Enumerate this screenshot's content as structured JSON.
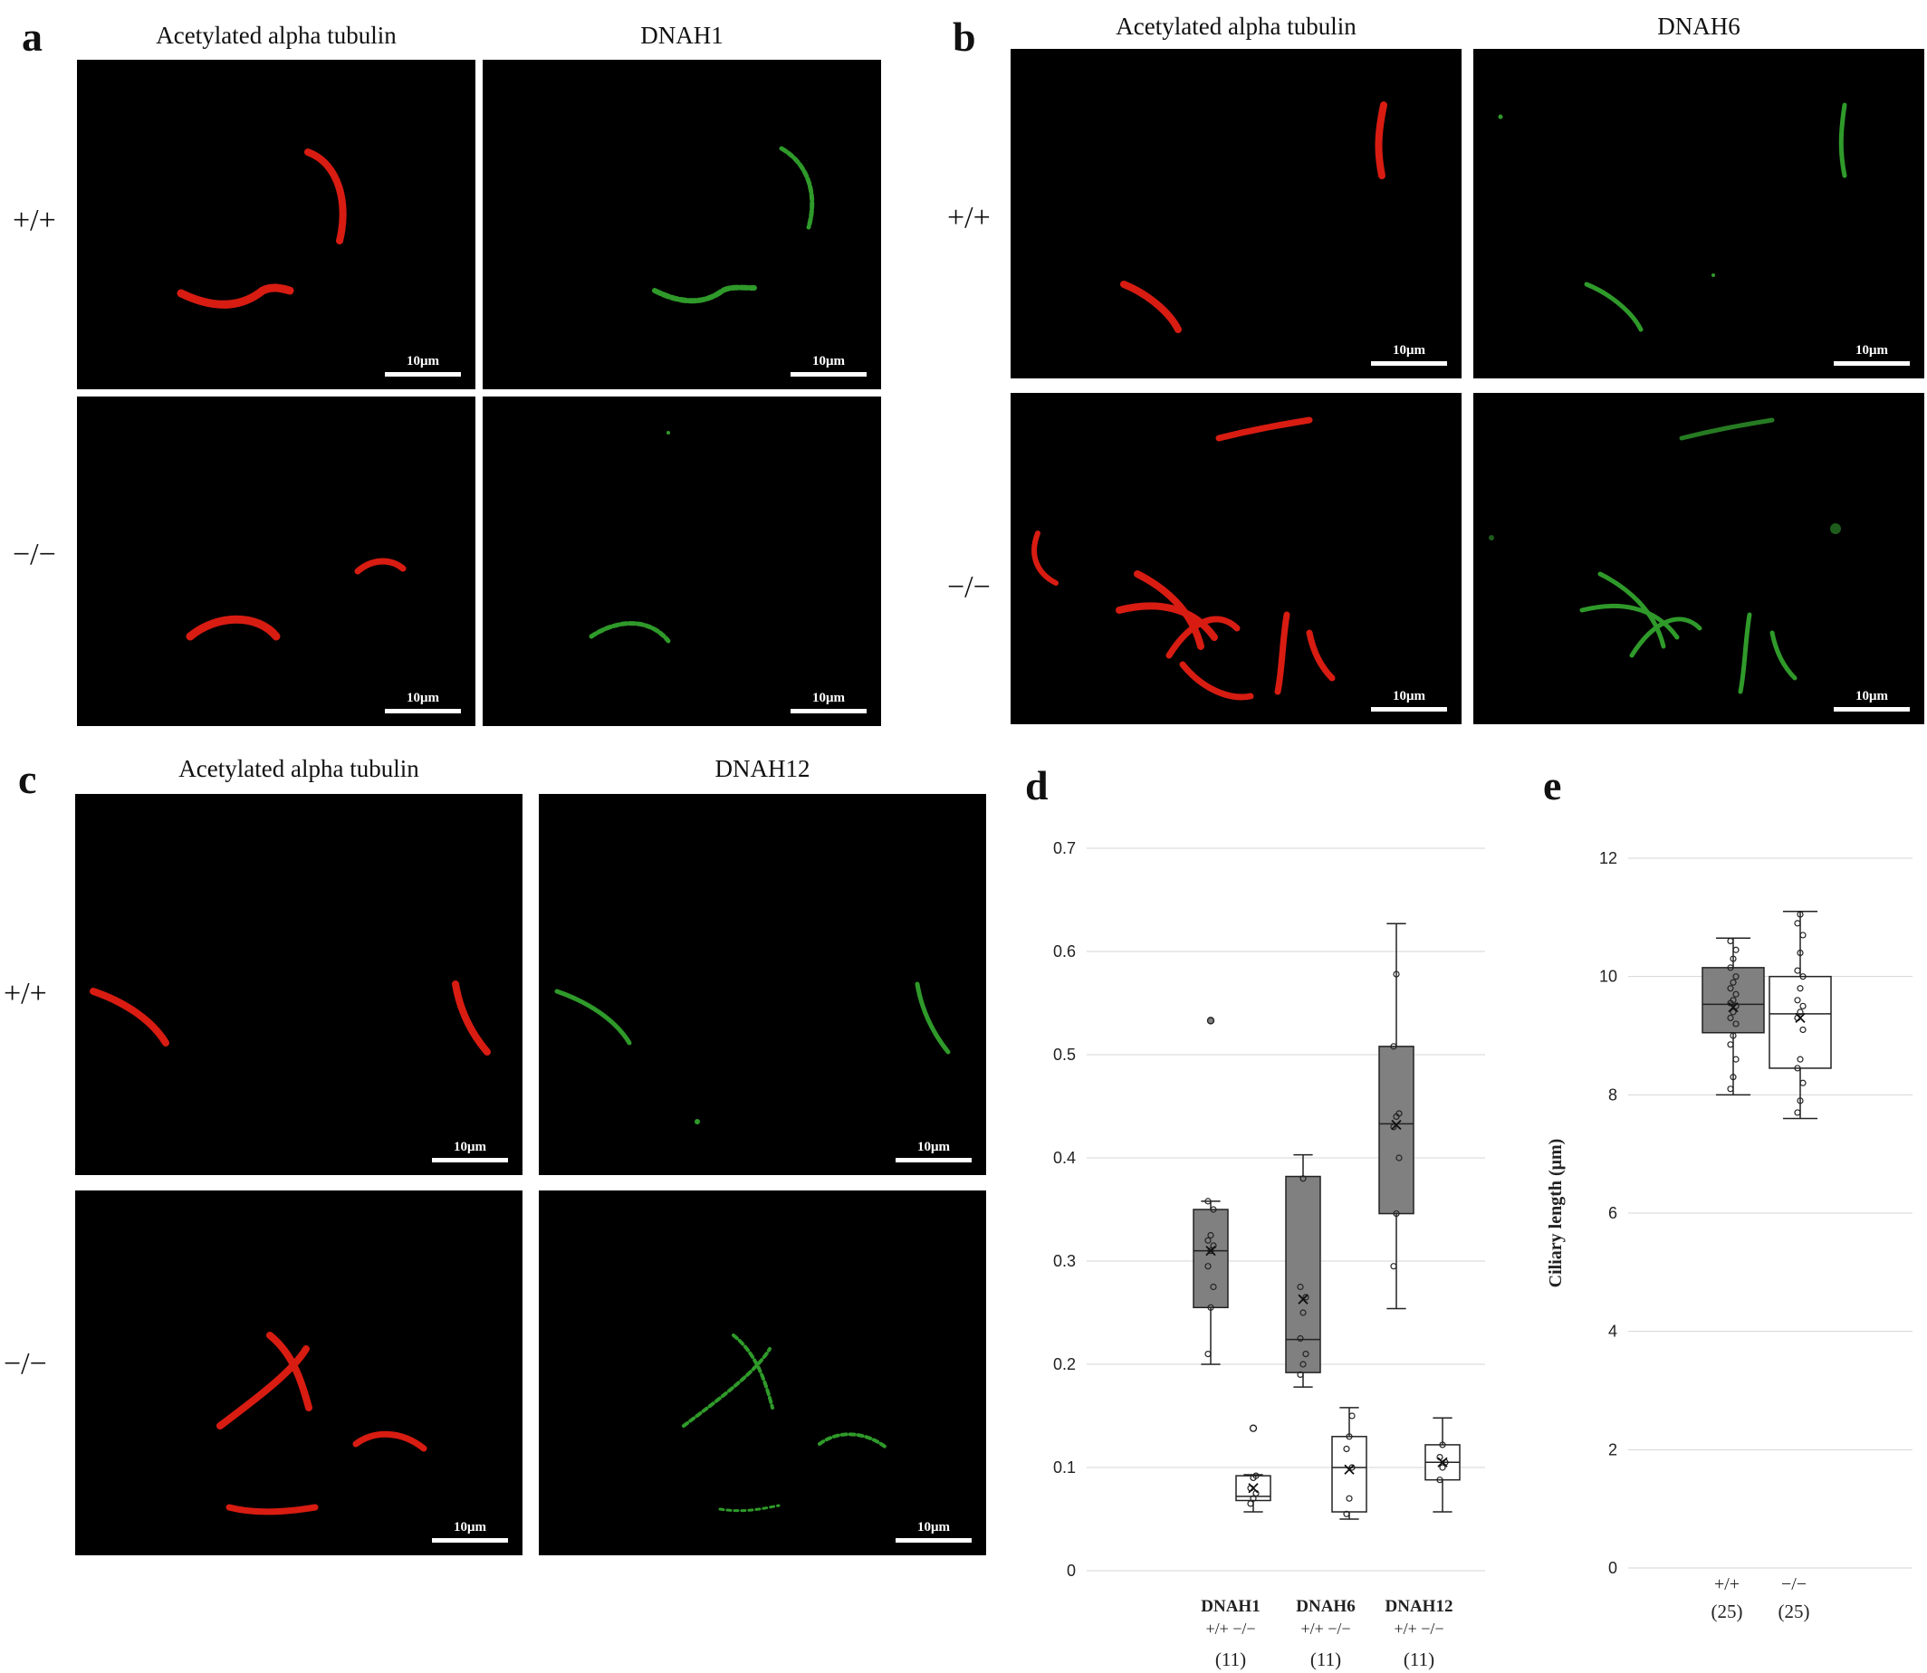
{
  "panels": {
    "a": {
      "label": "a",
      "col_titles": [
        "Acetylated alpha tubulin",
        "DNAH1"
      ],
      "row_labels": [
        "+/+",
        "−/−"
      ],
      "scale_bar": "10μm"
    },
    "b": {
      "label": "b",
      "col_titles": [
        "Acetylated alpha tubulin",
        "DNAH6"
      ],
      "row_labels": [
        "+/+",
        "−/−"
      ],
      "scale_bar": "10μm"
    },
    "c": {
      "label": "c",
      "col_titles": [
        "Acetylated alpha tubulin",
        "DNAH12"
      ],
      "row_labels": [
        "+/+",
        "−/−"
      ],
      "scale_bar": "10μm"
    },
    "d": {
      "label": "d"
    },
    "e": {
      "label": "e"
    }
  },
  "colors": {
    "tubulin": "#d81c12",
    "dynein": "#2f9a2a",
    "wt_box": "#808080",
    "ko_box": "#ffffff"
  },
  "chart_data": [
    {
      "panel": "d",
      "type": "box",
      "title": "",
      "ylabel": "",
      "ylim": [
        0,
        0.7
      ],
      "yticks": [
        0,
        0.1,
        0.2,
        0.3,
        0.4,
        0.5,
        0.6,
        0.7
      ],
      "ytick_labels": [
        "0",
        "0.1",
        "0.2",
        "0.3",
        "0.4",
        "0.5",
        "0.6",
        "0.7"
      ],
      "grid": true,
      "groups": [
        {
          "name": "DNAH1",
          "genotypes": "+/+  −/−",
          "n": "(11)"
        },
        {
          "name": "DNAH6",
          "genotypes": "+/+  −/−",
          "n": "(11)"
        },
        {
          "name": "DNAH12",
          "genotypes": "+/+  −/−",
          "n": "(11)"
        }
      ],
      "boxes": [
        {
          "group": "DNAH1",
          "genotype": "+/+",
          "fill": "gray",
          "min": 0.2,
          "q1": 0.255,
          "median": 0.31,
          "q3": 0.35,
          "max": 0.358,
          "mean": 0.31,
          "outliers": [
            0.533
          ],
          "points": [
            0.21,
            0.255,
            0.275,
            0.295,
            0.31,
            0.315,
            0.32,
            0.325,
            0.35,
            0.358
          ]
        },
        {
          "group": "DNAH1",
          "genotype": "−/−",
          "fill": "white",
          "min": 0.057,
          "q1": 0.068,
          "median": 0.072,
          "q3": 0.092,
          "max": 0.093,
          "mean": 0.08,
          "outliers": [
            0.138
          ],
          "points": [
            0.065,
            0.07,
            0.075,
            0.08,
            0.09,
            0.092
          ]
        },
        {
          "group": "DNAH6",
          "genotype": "+/+",
          "fill": "gray",
          "min": 0.178,
          "q1": 0.192,
          "median": 0.224,
          "q3": 0.382,
          "max": 0.403,
          "mean": 0.263,
          "outliers": [],
          "points": [
            0.19,
            0.2,
            0.21,
            0.225,
            0.25,
            0.265,
            0.275,
            0.38
          ]
        },
        {
          "group": "DNAH6",
          "genotype": "−/−",
          "fill": "white",
          "min": 0.05,
          "q1": 0.057,
          "median": 0.1,
          "q3": 0.13,
          "max": 0.158,
          "mean": 0.098,
          "outliers": [],
          "points": [
            0.055,
            0.07,
            0.1,
            0.118,
            0.13,
            0.15
          ]
        },
        {
          "group": "DNAH12",
          "genotype": "+/+",
          "fill": "gray",
          "min": 0.254,
          "q1": 0.346,
          "median": 0.433,
          "q3": 0.508,
          "max": 0.627,
          "mean": 0.432,
          "outliers": [],
          "points": [
            0.295,
            0.346,
            0.4,
            0.43,
            0.44,
            0.443,
            0.508,
            0.578
          ]
        },
        {
          "group": "DNAH12",
          "genotype": "−/−",
          "fill": "white",
          "min": 0.057,
          "q1": 0.088,
          "median": 0.105,
          "q3": 0.122,
          "max": 0.148,
          "mean": 0.105,
          "outliers": [],
          "points": [
            0.088,
            0.1,
            0.105,
            0.11,
            0.122
          ]
        }
      ]
    },
    {
      "panel": "e",
      "type": "box",
      "title": "",
      "ylabel": "Ciliary length (μm)",
      "ylim": [
        0,
        12
      ],
      "yticks": [
        0,
        2,
        4,
        6,
        8,
        10,
        12
      ],
      "ytick_labels": [
        "0",
        "2",
        "4",
        "6",
        "8",
        "10",
        "12"
      ],
      "grid": true,
      "categories": [
        "+/+",
        "−/−"
      ],
      "n": [
        "(25)",
        "(25)"
      ],
      "boxes": [
        {
          "genotype": "+/+",
          "fill": "gray",
          "min": 8.0,
          "q1": 9.05,
          "median": 9.53,
          "q3": 10.15,
          "max": 10.65,
          "mean": 9.48,
          "outliers": [],
          "points": [
            8.1,
            8.3,
            8.6,
            8.85,
            9.0,
            9.2,
            9.3,
            9.4,
            9.5,
            9.55,
            9.6,
            9.7,
            9.8,
            9.9,
            10.0,
            10.15,
            10.3,
            10.45,
            10.6
          ]
        },
        {
          "genotype": "−/−",
          "fill": "white",
          "min": 7.6,
          "q1": 8.45,
          "median": 9.37,
          "q3": 10.0,
          "max": 11.1,
          "mean": 9.3,
          "outliers": [],
          "points": [
            7.7,
            7.9,
            8.2,
            8.45,
            8.6,
            9.1,
            9.3,
            9.4,
            9.5,
            9.6,
            9.8,
            10.0,
            10.1,
            10.4,
            10.7,
            10.9,
            11.05
          ]
        }
      ]
    }
  ]
}
